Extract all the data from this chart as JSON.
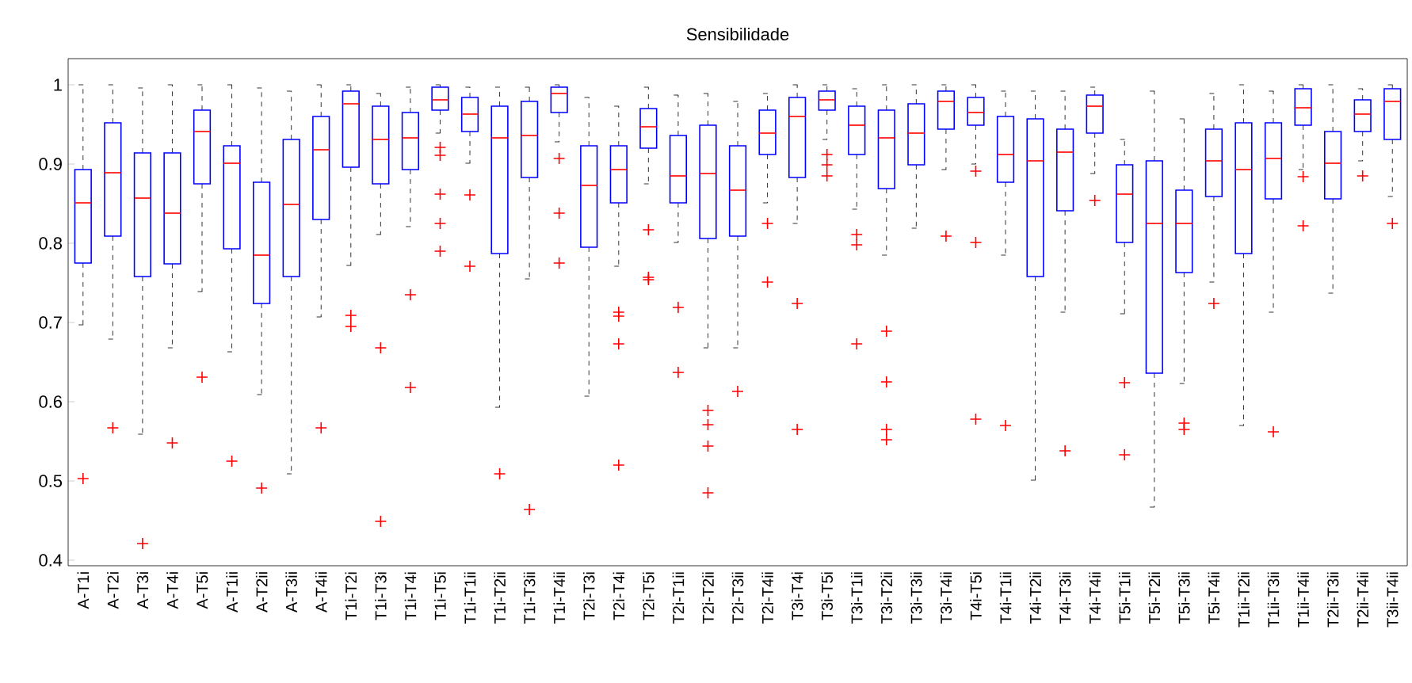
{
  "chart_data": {
    "type": "box",
    "title": "Sensibilidade",
    "categories": [
      "A-T1i",
      "A-T2i",
      "A-T3i",
      "A-T4i",
      "A-T5i",
      "A-T1ii",
      "A-T2ii",
      "A-T3ii",
      "A-T4ii",
      "T1i-T2i",
      "T1i-T3i",
      "T1i-T4i",
      "T1i-T5i",
      "T1i-T1ii",
      "T1i-T2ii",
      "T1i-T3ii",
      "T1i-T4ii",
      "T2i-T3i",
      "T2i-T4i",
      "T2i-T5i",
      "T2i-T1ii",
      "T2i-T2ii",
      "T2i-T3ii",
      "T2i-T4ii",
      "T3i-T4i",
      "T3i-T5i",
      "T3i-T1ii",
      "T3i-T2ii",
      "T3i-T3ii",
      "T3i-T4ii",
      "T4i-T5i",
      "T4i-T1ii",
      "T4i-T2ii",
      "T4i-T3ii",
      "T4i-T4ii",
      "T5i-T1ii",
      "T5i-T2ii",
      "T5i-T3ii",
      "T5i-T4ii",
      "T1ii-T2ii",
      "T1ii-T3ii",
      "T1ii-T4ii",
      "T2ii-T3ii",
      "T2ii-T4ii",
      "T3ii-T4ii"
    ],
    "boxes": [
      {
        "low": 0.697,
        "q1": 0.775,
        "median": 0.851,
        "q3": 0.893,
        "high": 1.0,
        "outliers": [
          0.503
        ]
      },
      {
        "low": 0.679,
        "q1": 0.809,
        "median": 0.889,
        "q3": 0.952,
        "high": 1.0,
        "outliers": [
          0.567
        ]
      },
      {
        "low": 0.559,
        "q1": 0.758,
        "median": 0.857,
        "q3": 0.914,
        "high": 0.996,
        "outliers": [
          0.421
        ]
      },
      {
        "low": 0.668,
        "q1": 0.774,
        "median": 0.838,
        "q3": 0.914,
        "high": 1.0,
        "outliers": [
          0.548
        ]
      },
      {
        "low": 0.739,
        "q1": 0.875,
        "median": 0.941,
        "q3": 0.968,
        "high": 1.0,
        "outliers": [
          0.631
        ]
      },
      {
        "low": 0.663,
        "q1": 0.793,
        "median": 0.901,
        "q3": 0.923,
        "high": 1.0,
        "outliers": [
          0.525
        ]
      },
      {
        "low": 0.609,
        "q1": 0.724,
        "median": 0.785,
        "q3": 0.877,
        "high": 0.996,
        "outliers": [
          0.491
        ]
      },
      {
        "low": 0.509,
        "q1": 0.758,
        "median": 0.849,
        "q3": 0.931,
        "high": 0.992
      },
      {
        "low": 0.707,
        "q1": 0.83,
        "median": 0.918,
        "q3": 0.96,
        "high": 1.0,
        "outliers": [
          0.567
        ]
      },
      {
        "low": 0.772,
        "q1": 0.896,
        "median": 0.976,
        "q3": 0.992,
        "high": 1.0,
        "outliers": [
          0.709,
          0.695
        ]
      },
      {
        "low": 0.811,
        "q1": 0.875,
        "median": 0.931,
        "q3": 0.973,
        "high": 0.989,
        "outliers": [
          0.668,
          0.449
        ]
      },
      {
        "low": 0.821,
        "q1": 0.893,
        "median": 0.933,
        "q3": 0.965,
        "high": 0.997,
        "outliers": [
          0.735,
          0.618
        ]
      },
      {
        "low": 0.939,
        "q1": 0.968,
        "median": 0.981,
        "q3": 0.997,
        "high": 1.0,
        "outliers": [
          0.921,
          0.911,
          0.862,
          0.825,
          0.79
        ]
      },
      {
        "low": 0.901,
        "q1": 0.941,
        "median": 0.963,
        "q3": 0.984,
        "high": 0.997,
        "outliers": [
          0.861,
          0.771
        ]
      },
      {
        "low": 0.593,
        "q1": 0.787,
        "median": 0.933,
        "q3": 0.973,
        "high": 0.997,
        "outliers": [
          0.509
        ]
      },
      {
        "low": 0.755,
        "q1": 0.883,
        "median": 0.936,
        "q3": 0.979,
        "high": 0.997,
        "outliers": [
          0.464
        ]
      },
      {
        "low": 0.928,
        "q1": 0.965,
        "median": 0.989,
        "q3": 0.997,
        "high": 1.0,
        "outliers": [
          0.907,
          0.838,
          0.775
        ]
      },
      {
        "low": 0.607,
        "q1": 0.795,
        "median": 0.873,
        "q3": 0.923,
        "high": 0.984
      },
      {
        "low": 0.771,
        "q1": 0.851,
        "median": 0.893,
        "q3": 0.923,
        "high": 0.973,
        "outliers": [
          0.713,
          0.708,
          0.673,
          0.52
        ]
      },
      {
        "low": 0.875,
        "q1": 0.92,
        "median": 0.947,
        "q3": 0.97,
        "high": 0.997,
        "outliers": [
          0.817,
          0.757,
          0.754
        ]
      },
      {
        "low": 0.801,
        "q1": 0.851,
        "median": 0.885,
        "q3": 0.936,
        "high": 0.987,
        "outliers": [
          0.719,
          0.637
        ]
      },
      {
        "low": 0.668,
        "q1": 0.806,
        "median": 0.888,
        "q3": 0.949,
        "high": 0.989,
        "outliers": [
          0.589,
          0.571,
          0.544,
          0.485
        ]
      },
      {
        "low": 0.668,
        "q1": 0.809,
        "median": 0.867,
        "q3": 0.923,
        "high": 0.979,
        "outliers": [
          0.613
        ]
      },
      {
        "low": 0.851,
        "q1": 0.912,
        "median": 0.939,
        "q3": 0.968,
        "high": 0.989,
        "outliers": [
          0.825,
          0.751
        ]
      },
      {
        "low": 0.825,
        "q1": 0.883,
        "median": 0.96,
        "q3": 0.984,
        "high": 1.0,
        "outliers": [
          0.724,
          0.565
        ]
      },
      {
        "low": 0.931,
        "q1": 0.968,
        "median": 0.981,
        "q3": 0.992,
        "high": 1.0,
        "outliers": [
          0.912,
          0.899,
          0.885
        ]
      },
      {
        "low": 0.843,
        "q1": 0.912,
        "median": 0.949,
        "q3": 0.973,
        "high": 0.995,
        "outliers": [
          0.811,
          0.798,
          0.673
        ]
      },
      {
        "low": 0.785,
        "q1": 0.869,
        "median": 0.933,
        "q3": 0.968,
        "high": 1.0,
        "outliers": [
          0.689,
          0.625,
          0.565,
          0.552
        ]
      },
      {
        "low": 0.819,
        "q1": 0.899,
        "median": 0.939,
        "q3": 0.976,
        "high": 1.0
      },
      {
        "low": 0.893,
        "q1": 0.944,
        "median": 0.979,
        "q3": 0.992,
        "high": 1.0,
        "outliers": [
          0.809
        ]
      },
      {
        "low": 0.9,
        "q1": 0.949,
        "median": 0.965,
        "q3": 0.984,
        "high": 1.0,
        "outliers": [
          0.891,
          0.801,
          0.578
        ]
      },
      {
        "low": 0.785,
        "q1": 0.877,
        "median": 0.912,
        "q3": 0.96,
        "high": 0.992,
        "outliers": [
          0.57
        ]
      },
      {
        "low": 0.501,
        "q1": 0.758,
        "median": 0.904,
        "q3": 0.957,
        "high": 0.992
      },
      {
        "low": 0.713,
        "q1": 0.841,
        "median": 0.915,
        "q3": 0.944,
        "high": 0.992,
        "outliers": [
          0.538
        ]
      },
      {
        "low": 0.888,
        "q1": 0.939,
        "median": 0.973,
        "q3": 0.987,
        "high": 0.997,
        "outliers": [
          0.854
        ]
      },
      {
        "low": 0.711,
        "q1": 0.801,
        "median": 0.862,
        "q3": 0.899,
        "high": 0.931,
        "outliers": [
          0.624,
          0.533
        ]
      },
      {
        "low": 0.467,
        "q1": 0.636,
        "median": 0.825,
        "q3": 0.904,
        "high": 0.992
      },
      {
        "low": 0.623,
        "q1": 0.763,
        "median": 0.825,
        "q3": 0.867,
        "high": 0.957,
        "outliers": [
          0.573,
          0.565
        ]
      },
      {
        "low": 0.751,
        "q1": 0.859,
        "median": 0.904,
        "q3": 0.944,
        "high": 0.989,
        "outliers": [
          0.724
        ]
      },
      {
        "low": 0.57,
        "q1": 0.787,
        "median": 0.893,
        "q3": 0.952,
        "high": 1.0
      },
      {
        "low": 0.713,
        "q1": 0.856,
        "median": 0.907,
        "q3": 0.952,
        "high": 0.992,
        "outliers": [
          0.562
        ]
      },
      {
        "low": 0.893,
        "q1": 0.949,
        "median": 0.971,
        "q3": 0.995,
        "high": 1.0,
        "outliers": [
          0.884,
          0.822
        ]
      },
      {
        "low": 0.737,
        "q1": 0.856,
        "median": 0.901,
        "q3": 0.941,
        "high": 1.0
      },
      {
        "low": 0.904,
        "q1": 0.941,
        "median": 0.963,
        "q3": 0.981,
        "high": 0.995,
        "outliers": [
          0.885
        ]
      },
      {
        "low": 0.859,
        "q1": 0.931,
        "median": 0.979,
        "q3": 0.995,
        "high": 1.0,
        "outliers": [
          0.825
        ]
      }
    ],
    "ylim": [
      0.393,
      1.033
    ],
    "yticks": [
      0.4,
      0.5,
      0.6,
      0.7,
      0.8,
      0.9,
      1
    ]
  }
}
